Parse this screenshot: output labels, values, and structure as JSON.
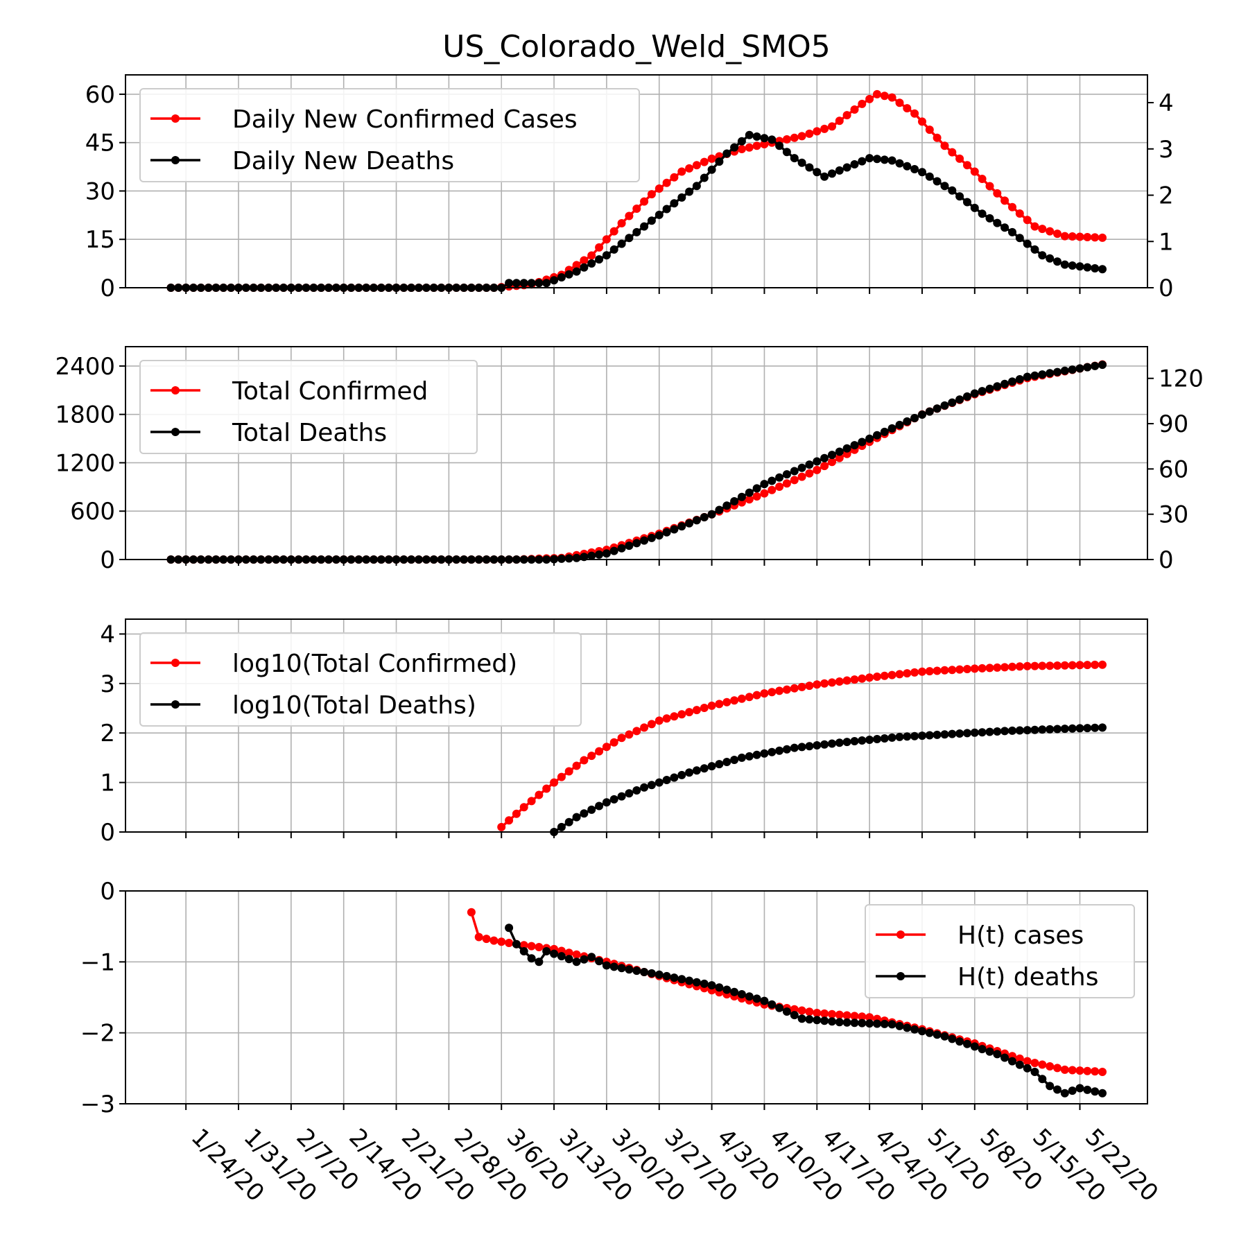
{
  "title": "US_Colorado_Weld_SMO5",
  "colors": {
    "cases": "#ff0000",
    "deaths": "#000000",
    "grid": "#b0b0b0"
  },
  "x_axis": {
    "start_date": "2020-01-22",
    "end_date": "2020-05-25",
    "tick_labels": [
      "1/24/20",
      "1/31/20",
      "2/7/20",
      "2/14/20",
      "2/21/20",
      "2/28/20",
      "3/6/20",
      "3/13/20",
      "3/20/20",
      "3/27/20",
      "4/3/20",
      "4/10/20",
      "4/17/20",
      "4/24/20",
      "5/1/20",
      "5/8/20",
      "5/15/20",
      "5/22/20"
    ]
  },
  "chart_data": [
    {
      "type": "line",
      "legend_placement": "upper-left",
      "grid": true,
      "left_axis": {
        "ylim": [
          0,
          66
        ],
        "ticks": [
          0,
          15,
          30,
          45,
          60
        ]
      },
      "right_axis": {
        "ylim": [
          0,
          4.6
        ],
        "ticks": [
          0,
          1,
          2,
          3,
          4
        ]
      },
      "series": [
        {
          "name": "Daily New Confirmed Cases",
          "axis": "left",
          "points": [
            [
              "2020-01-22",
              0
            ],
            [
              "2020-03-05",
              0
            ],
            [
              "2020-03-10",
              1
            ],
            [
              "2020-03-14",
              4
            ],
            [
              "2020-03-18",
              10
            ],
            [
              "2020-03-22",
              20
            ],
            [
              "2020-03-26",
              29
            ],
            [
              "2020-03-30",
              36
            ],
            [
              "2020-04-03",
              40
            ],
            [
              "2020-04-07",
              43
            ],
            [
              "2020-04-11",
              45
            ],
            [
              "2020-04-15",
              47
            ],
            [
              "2020-04-19",
              50
            ],
            [
              "2020-04-23",
              57
            ],
            [
              "2020-04-25",
              60
            ],
            [
              "2020-04-27",
              59
            ],
            [
              "2020-04-30",
              54
            ],
            [
              "2020-05-04",
              44
            ],
            [
              "2020-05-08",
              36
            ],
            [
              "2020-05-12",
              27
            ],
            [
              "2020-05-16",
              19
            ],
            [
              "2020-05-20",
              16
            ],
            [
              "2020-05-25",
              15.5
            ]
          ]
        },
        {
          "name": "Daily New Deaths",
          "axis": "right",
          "points": [
            [
              "2020-01-22",
              0
            ],
            [
              "2020-03-06",
              0
            ],
            [
              "2020-03-07",
              0.1
            ],
            [
              "2020-03-12",
              0.1
            ],
            [
              "2020-03-16",
              0.35
            ],
            [
              "2020-03-20",
              0.7
            ],
            [
              "2020-03-24",
              1.2
            ],
            [
              "2020-03-28",
              1.7
            ],
            [
              "2020-04-01",
              2.2
            ],
            [
              "2020-04-05",
              2.9
            ],
            [
              "2020-04-08",
              3.3
            ],
            [
              "2020-04-11",
              3.2
            ],
            [
              "2020-04-14",
              2.8
            ],
            [
              "2020-04-18",
              2.4
            ],
            [
              "2020-04-21",
              2.6
            ],
            [
              "2020-04-24",
              2.8
            ],
            [
              "2020-04-27",
              2.75
            ],
            [
              "2020-05-01",
              2.5
            ],
            [
              "2020-05-05",
              2.1
            ],
            [
              "2020-05-09",
              1.6
            ],
            [
              "2020-05-13",
              1.2
            ],
            [
              "2020-05-17",
              0.7
            ],
            [
              "2020-05-20",
              0.5
            ],
            [
              "2020-05-25",
              0.4
            ]
          ]
        }
      ]
    },
    {
      "type": "line",
      "legend_placement": "upper-left",
      "grid": true,
      "left_axis": {
        "ylim": [
          0,
          2640
        ],
        "ticks": [
          0,
          600,
          1200,
          1800,
          2400
        ]
      },
      "right_axis": {
        "ylim": [
          0,
          141
        ],
        "ticks": [
          0,
          30,
          60,
          90,
          120
        ]
      },
      "series": [
        {
          "name": "Total Confirmed",
          "axis": "left",
          "points": [
            [
              "2020-01-22",
              0
            ],
            [
              "2020-03-08",
              0
            ],
            [
              "2020-03-14",
              20
            ],
            [
              "2020-03-20",
              120
            ],
            [
              "2020-03-27",
              320
            ],
            [
              "2020-04-03",
              560
            ],
            [
              "2020-04-10",
              820
            ],
            [
              "2020-04-17",
              1110
            ],
            [
              "2020-04-24",
              1460
            ],
            [
              "2020-05-01",
              1800
            ],
            [
              "2020-05-08",
              2050
            ],
            [
              "2020-05-15",
              2250
            ],
            [
              "2020-05-25",
              2420
            ]
          ]
        },
        {
          "name": "Total Deaths",
          "axis": "right",
          "points": [
            [
              "2020-01-22",
              0
            ],
            [
              "2020-03-12",
              0
            ],
            [
              "2020-03-16",
              1
            ],
            [
              "2020-03-20",
              4
            ],
            [
              "2020-03-27",
              16
            ],
            [
              "2020-04-03",
              30
            ],
            [
              "2020-04-10",
              50
            ],
            [
              "2020-04-17",
              65
            ],
            [
              "2020-04-24",
              80
            ],
            [
              "2020-05-01",
              96
            ],
            [
              "2020-05-08",
              110
            ],
            [
              "2020-05-15",
              121
            ],
            [
              "2020-05-25",
              129
            ]
          ]
        }
      ]
    },
    {
      "type": "line",
      "legend_placement": "upper-left",
      "grid": true,
      "left_axis": {
        "ylim": [
          0,
          4.3
        ],
        "ticks": [
          0,
          1,
          2,
          3,
          4
        ]
      },
      "series": [
        {
          "name": "log10(Total Confirmed)",
          "axis": "left",
          "points": [
            [
              "2020-03-06",
              0.1
            ],
            [
              "2020-03-09",
              0.5
            ],
            [
              "2020-03-13",
              1.0
            ],
            [
              "2020-03-17",
              1.45
            ],
            [
              "2020-03-22",
              1.9
            ],
            [
              "2020-03-27",
              2.25
            ],
            [
              "2020-04-03",
              2.55
            ],
            [
              "2020-04-10",
              2.8
            ],
            [
              "2020-04-17",
              2.98
            ],
            [
              "2020-04-24",
              3.12
            ],
            [
              "2020-05-01",
              3.24
            ],
            [
              "2020-05-08",
              3.3
            ],
            [
              "2020-05-15",
              3.35
            ],
            [
              "2020-05-25",
              3.38
            ]
          ]
        },
        {
          "name": "log10(Total Deaths)",
          "axis": "left",
          "points": [
            [
              "2020-03-13",
              0.0
            ],
            [
              "2020-03-16",
              0.3
            ],
            [
              "2020-03-20",
              0.6
            ],
            [
              "2020-03-25",
              0.9
            ],
            [
              "2020-03-31",
              1.2
            ],
            [
              "2020-04-07",
              1.5
            ],
            [
              "2020-04-14",
              1.7
            ],
            [
              "2020-04-21",
              1.82
            ],
            [
              "2020-04-28",
              1.92
            ],
            [
              "2020-05-05",
              1.98
            ],
            [
              "2020-05-12",
              2.04
            ],
            [
              "2020-05-19",
              2.08
            ],
            [
              "2020-05-25",
              2.11
            ]
          ]
        }
      ]
    },
    {
      "type": "line",
      "legend_placement": "upper-right",
      "grid": true,
      "left_axis": {
        "ylim": [
          -3,
          0
        ],
        "ticks": [
          0,
          -1,
          -2,
          -3
        ]
      },
      "series": [
        {
          "name": "H(t) cases",
          "axis": "left",
          "points": [
            [
              "2020-03-02",
              -0.3
            ],
            [
              "2020-03-03",
              -0.65
            ],
            [
              "2020-03-05",
              -0.7
            ],
            [
              "2020-03-08",
              -0.75
            ],
            [
              "2020-03-13",
              -0.82
            ],
            [
              "2020-03-20",
              -1.0
            ],
            [
              "2020-03-27",
              -1.2
            ],
            [
              "2020-04-03",
              -1.4
            ],
            [
              "2020-04-10",
              -1.6
            ],
            [
              "2020-04-17",
              -1.72
            ],
            [
              "2020-04-24",
              -1.78
            ],
            [
              "2020-05-01",
              -1.95
            ],
            [
              "2020-05-08",
              -2.15
            ],
            [
              "2020-05-15",
              -2.4
            ],
            [
              "2020-05-20",
              -2.52
            ],
            [
              "2020-05-25",
              -2.55
            ]
          ]
        },
        {
          "name": "H(t) deaths",
          "axis": "left",
          "points": [
            [
              "2020-03-07",
              -0.52
            ],
            [
              "2020-03-08",
              -0.75
            ],
            [
              "2020-03-10",
              -0.95
            ],
            [
              "2020-03-11",
              -1.0
            ],
            [
              "2020-03-12",
              -0.85
            ],
            [
              "2020-03-14",
              -0.92
            ],
            [
              "2020-03-16",
              -1.0
            ],
            [
              "2020-03-18",
              -0.93
            ],
            [
              "2020-03-20",
              -1.05
            ],
            [
              "2020-03-27",
              -1.18
            ],
            [
              "2020-04-03",
              -1.33
            ],
            [
              "2020-04-10",
              -1.55
            ],
            [
              "2020-04-15",
              -1.8
            ],
            [
              "2020-04-20",
              -1.85
            ],
            [
              "2020-04-27",
              -1.88
            ],
            [
              "2020-05-04",
              -2.05
            ],
            [
              "2020-05-11",
              -2.3
            ],
            [
              "2020-05-16",
              -2.55
            ],
            [
              "2020-05-18",
              -2.75
            ],
            [
              "2020-05-20",
              -2.85
            ],
            [
              "2020-05-22",
              -2.78
            ],
            [
              "2020-05-25",
              -2.85
            ]
          ]
        }
      ]
    }
  ]
}
